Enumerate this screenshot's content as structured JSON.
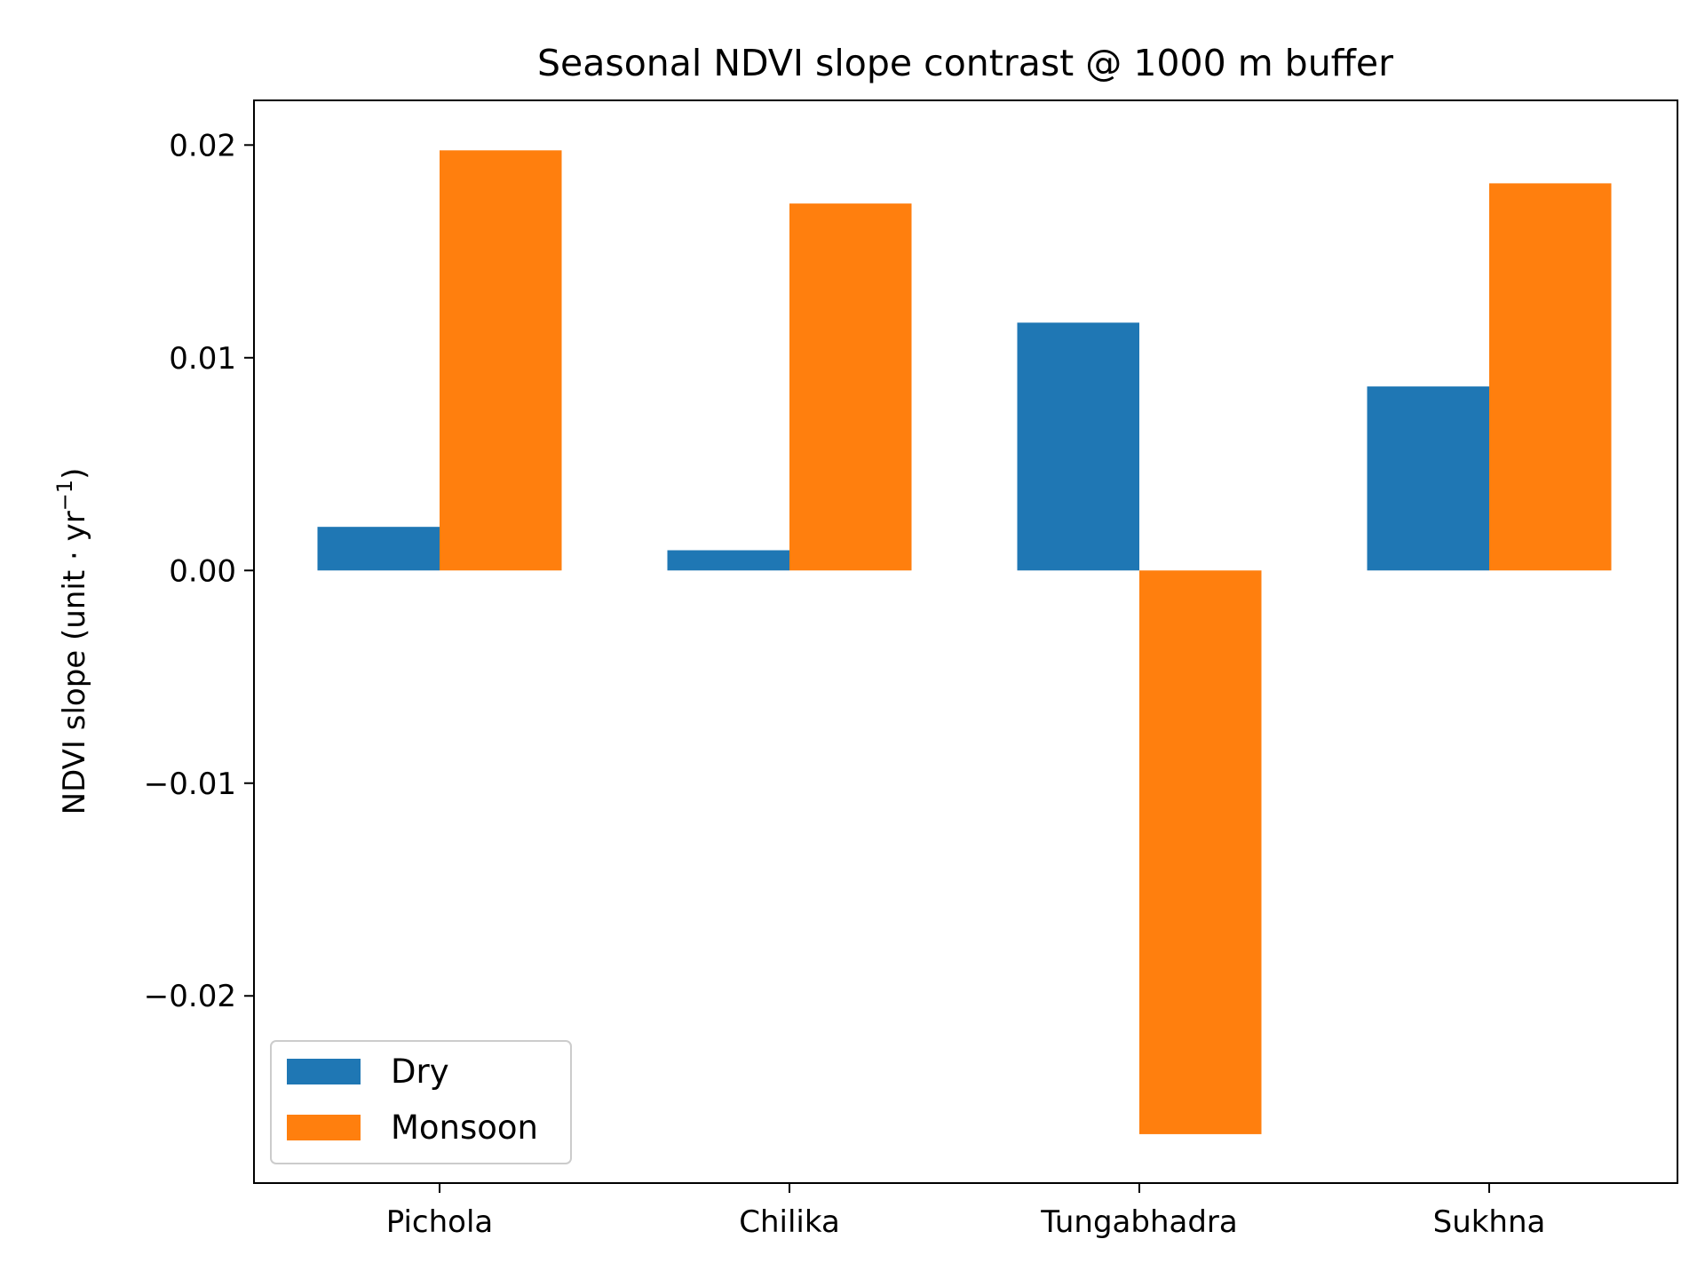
{
  "chart_data": {
    "type": "bar",
    "title": "Seasonal NDVI slope contrast @ 1000 m buffer",
    "xlabel": "",
    "ylabel": "NDVI slope (unit · yr",
    "ylabel_sup": "−1",
    "ylabel_close": ")",
    "categories": [
      "Pichola",
      "Chilika",
      "Tungabhadra",
      "Sukhna"
    ],
    "series": [
      {
        "name": "Dry",
        "color": "#1f77b4",
        "values": [
          0.00205,
          0.00095,
          0.01165,
          0.00865
        ]
      },
      {
        "name": "Monsoon",
        "color": "#ff7f0e",
        "values": [
          0.01975,
          0.01725,
          -0.0265,
          0.0182
        ]
      }
    ],
    "ylim": [
      -0.0288,
      0.0221
    ],
    "yticks": [
      {
        "value": -0.02,
        "label": "−0.02"
      },
      {
        "value": -0.01,
        "label": "−0.01"
      },
      {
        "value": 0.0,
        "label": "0.00"
      },
      {
        "value": 0.01,
        "label": "0.01"
      },
      {
        "value": 0.02,
        "label": "0.02"
      }
    ],
    "grid": false,
    "legend": "lower-left"
  }
}
